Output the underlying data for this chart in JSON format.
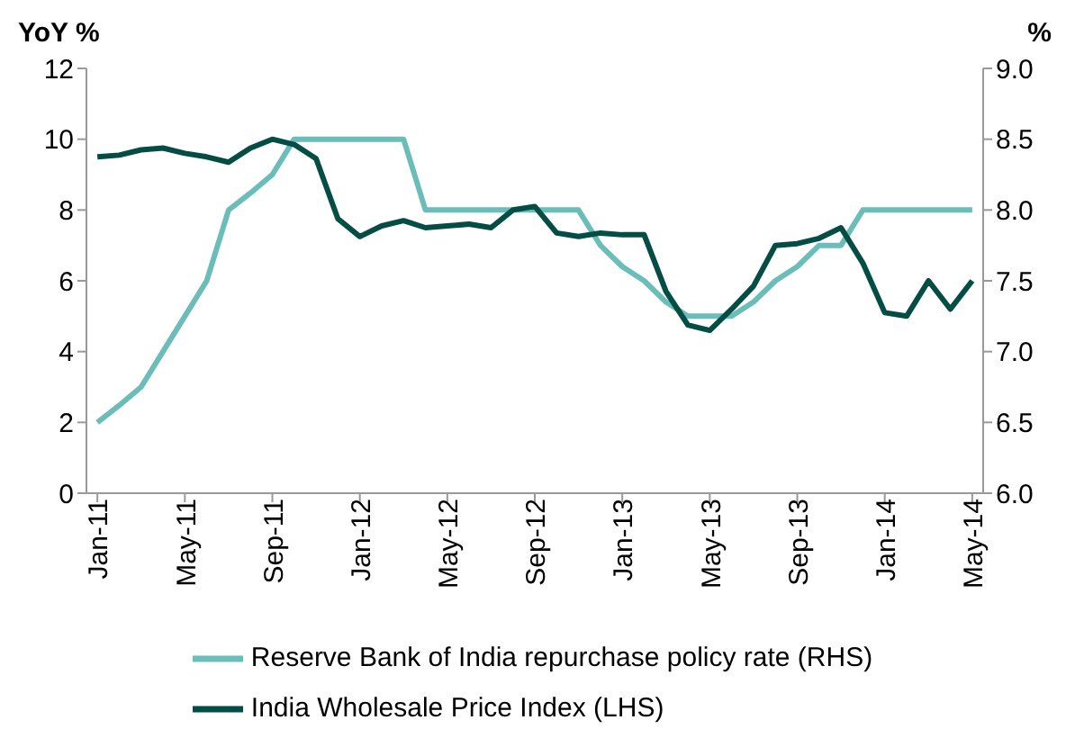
{
  "chart_data": {
    "type": "line",
    "ylabel": "YoY %",
    "y2label": "%",
    "categories": [
      "Jan-11",
      null,
      null,
      null,
      "May-11",
      null,
      null,
      null,
      "Sep-11",
      null,
      null,
      null,
      "Jan-12",
      null,
      null,
      null,
      "May-12",
      null,
      null,
      null,
      "Sep-12",
      null,
      null,
      null,
      "Jan-13",
      null,
      null,
      null,
      "May-13",
      null,
      null,
      null,
      "Sep-13",
      null,
      null,
      null,
      "Jan-14",
      null,
      null,
      null,
      "May-14"
    ],
    "series": [
      {
        "name": "Reserve Bank of India repurchase policy rate (RHS)",
        "color": "#6bbdb9",
        "axis": "y2",
        "values": [
          6.5,
          6.62,
          6.75,
          7.0,
          7.25,
          7.5,
          8.0,
          8.12,
          8.25,
          8.5,
          8.5,
          8.5,
          8.5,
          8.5,
          8.5,
          8.0,
          8.0,
          8.0,
          8.0,
          8.0,
          8.0,
          8.0,
          8.0,
          7.75,
          7.6,
          7.5,
          7.35,
          7.25,
          7.25,
          7.25,
          7.35,
          7.5,
          7.6,
          7.75,
          7.75,
          8.0,
          8.0,
          8.0,
          8.0,
          8.0,
          8.0
        ]
      },
      {
        "name": "India Wholesale Price Index (LHS)",
        "color": "#034d45",
        "values": [
          9.5,
          9.55,
          9.7,
          9.75,
          9.6,
          9.5,
          9.35,
          9.75,
          10.0,
          9.85,
          9.45,
          7.75,
          7.25,
          7.55,
          7.7,
          7.5,
          7.55,
          7.6,
          7.5,
          8.0,
          8.1,
          7.35,
          7.25,
          7.35,
          7.3,
          7.3,
          5.7,
          4.75,
          4.6,
          5.2,
          5.85,
          7.0,
          7.05,
          7.2,
          7.5,
          6.5,
          5.1,
          5.0,
          6.0,
          5.2,
          6.0
        ]
      }
    ],
    "ylim": [
      0,
      12
    ],
    "yticks": [
      0,
      2,
      4,
      6,
      8,
      10,
      12
    ],
    "y2lim": [
      6.0,
      9.0
    ],
    "y2ticks": [
      {
        "value": 6.0,
        "label": "6.0"
      },
      {
        "value": 6.5,
        "label": "6.5"
      },
      {
        "value": 7.0,
        "label": "7.0"
      },
      {
        "value": 7.5,
        "label": "7.5"
      },
      {
        "value": 8.0,
        "label": "8.0"
      },
      {
        "value": 8.5,
        "label": "8.5"
      },
      {
        "value": 9.0,
        "label": "9.0"
      }
    ],
    "grid": false,
    "legend": "bottom",
    "marker": "none",
    "line_style": "solid"
  }
}
